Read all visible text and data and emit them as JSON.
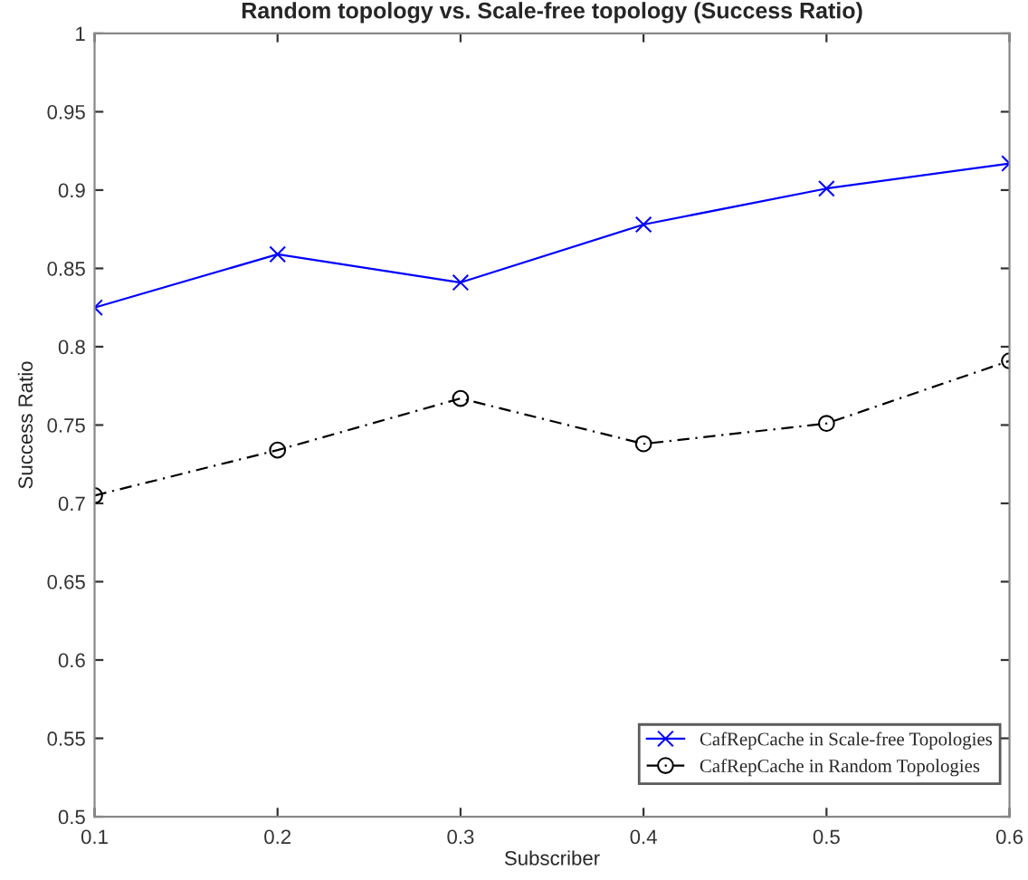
{
  "chart_data": {
    "type": "line",
    "title": "Random topology vs. Scale-free topology (Success Ratio)",
    "xlabel": "Subscriber",
    "ylabel": "Success Ratio",
    "x": [
      0.1,
      0.2,
      0.3,
      0.4,
      0.5,
      0.6
    ],
    "series": [
      {
        "name": "CafRepCache in Scale-free Topologies",
        "color": "#0000ff",
        "marker": "cross",
        "line_style": "solid",
        "values": [
          0.825,
          0.859,
          0.841,
          0.878,
          0.901,
          0.917
        ]
      },
      {
        "name": "CafRepCache in Random Topologies",
        "color": "#000000",
        "marker": "circle",
        "line_style": "dashed",
        "values": [
          0.705,
          0.734,
          0.767,
          0.738,
          0.751,
          0.791
        ]
      }
    ],
    "xlim": [
      0.1,
      0.6
    ],
    "xticks": [
      0.1,
      0.2,
      0.3,
      0.4,
      0.5,
      0.6
    ],
    "ylim": [
      0.5,
      1
    ],
    "yticks": [
      0.5,
      0.55,
      0.6,
      0.65,
      0.7,
      0.75,
      0.8,
      0.85,
      0.9,
      0.95,
      1
    ],
    "grid": false,
    "legend": "bottom right"
  }
}
